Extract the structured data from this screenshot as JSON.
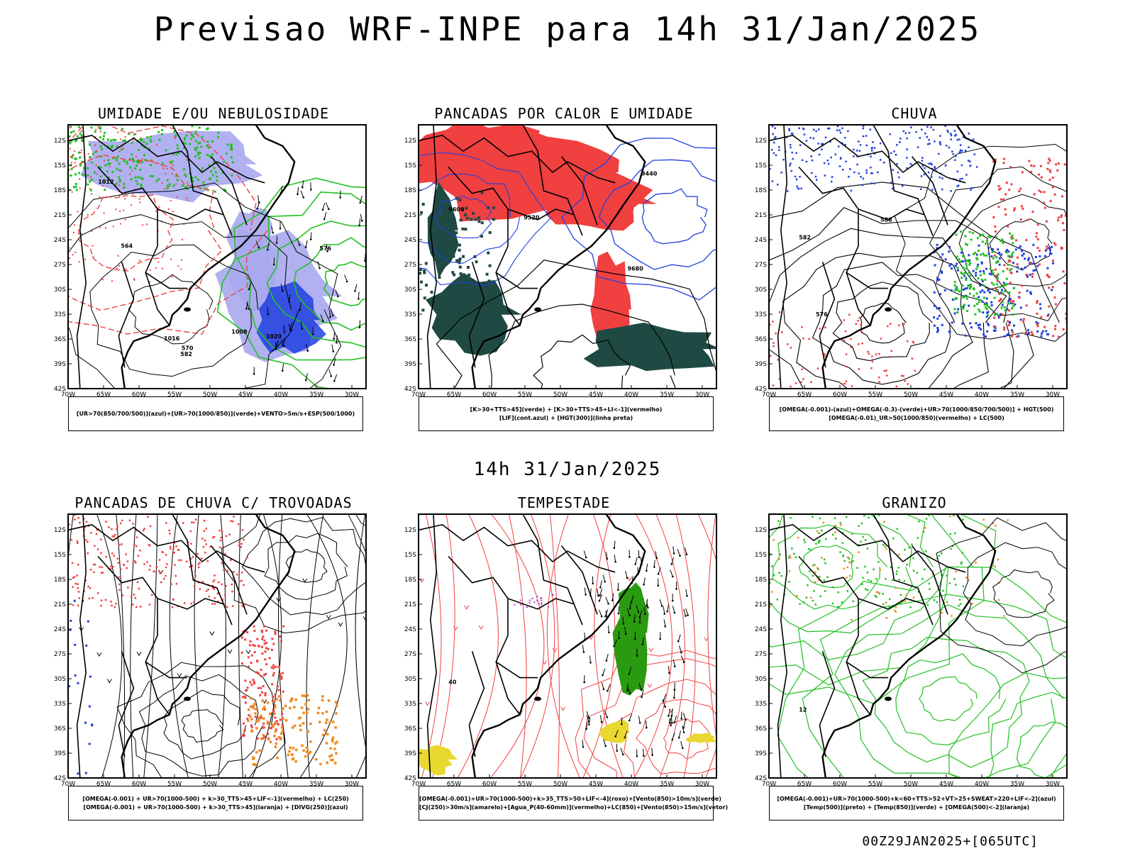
{
  "title": "Previsao WRF-INPE  para 14h 31/Jan/2025",
  "mid_time": "14h 31/Jan/2025",
  "footer": "00Z29JAN2025+[065UTC]",
  "axes": {
    "lat": [
      "12S",
      "15S",
      "18S",
      "21S",
      "24S",
      "27S",
      "30S",
      "33S",
      "36S",
      "39S",
      "42S"
    ],
    "lon": [
      "70W",
      "65W",
      "60W",
      "55W",
      "50W",
      "45W",
      "40W",
      "35W",
      "30W"
    ]
  },
  "colors": {
    "green": "#22c022",
    "red": "#f04040",
    "blue": "#2040e0",
    "lavender": "#a8a8f0",
    "darkteal": "#1f4a44",
    "orange": "#f08a20",
    "yellow": "#e8d830",
    "purple": "#a040c0"
  },
  "panels": [
    {
      "title": "UMIDADE E/OU NEBULOSIDADE",
      "legend": [
        "[UR>70(850/700/500)](azul)+[UR>70(1000/850)](verde)+VENTO>5m/s+ESP(500/1000)"
      ],
      "labels": [
        "1012",
        "1008",
        "1016",
        "1020",
        "576",
        "570",
        "564",
        "582"
      ]
    },
    {
      "title": "PANCADAS POR CALOR E UMIDADE",
      "legend": [
        "[K>30+TTS>45](verde) + [K>30+TTS>45+LI<-1](vermelho)",
        "[LIF](cont.azul) + [HGT(300)](linha preta)"
      ],
      "labels": [
        "9600",
        "9520",
        "9440",
        "9680"
      ]
    },
    {
      "title": "CHUVA",
      "legend": [
        "[OMEGA(-0.001)-(azul)+OMEGA(-0.3)-(verde)+UR>70(1000/850/700/500)] + HGT(500)",
        "[OMEGA(-0.01)_UR>50(1000/850)(vermelho) + LC(500)"
      ],
      "labels": [
        "582",
        "576",
        "588"
      ]
    },
    {
      "title": "PANCADAS DE CHUVA C/ TROVOADAS",
      "legend": [
        "[OMEGA(-0.001) + UR>70(1000-500) + k>30_TTS>45+LIF<-1](vermelho) + LC(250)",
        "[OMEGA(-0.001) + UR>70(1000-500) + k>30_TTS>45](laranja) + [DIVG(250)](azul)"
      ],
      "labels": []
    },
    {
      "title": "TEMPESTADE",
      "legend": [
        "[OMEGA(-0.001)+UR>70(1000-500)+k>35_TTS>50+LIF<-4](roxo)+[Vento(850)>10m/s](verde)",
        "[CJ(250)>30m/s](amarelo)+[Agua_P(40-60mm)](vermelho)+LC(850)+[Vento(850)>15m/s](vetor)"
      ],
      "labels": [
        "40"
      ]
    },
    {
      "title": "GRANIZO",
      "legend": [
        "[OMEGA(-0.001)+UR>70(1000-500)+k<60+TTS>52+VT>25+SWEAT>220+LIF<-2](azul)",
        "[Temp(500)](preto) + [Temp(850)](verde) + [OMEGA(500)<-2](laranja)"
      ],
      "labels": [
        "12"
      ]
    }
  ]
}
